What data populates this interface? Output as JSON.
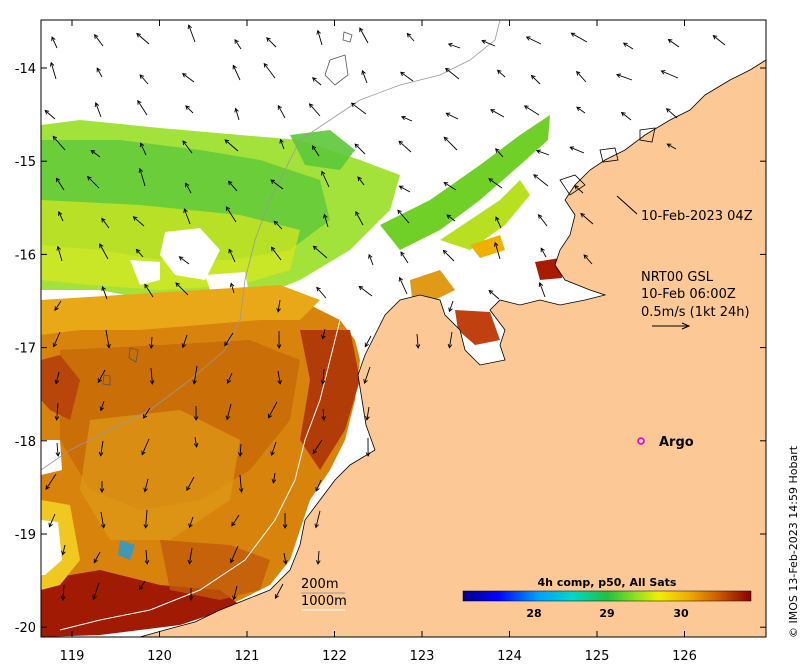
{
  "map": {
    "axes": {
      "lon_ticks": [
        "119",
        "120",
        "121",
        "122",
        "123",
        "124",
        "125",
        "126"
      ],
      "lat_ticks": [
        "-14",
        "-15",
        "-16",
        "-17",
        "-18",
        "-19",
        "-20"
      ]
    },
    "timestamp_label": "10-Feb-2023 04Z",
    "current_legend": {
      "line1": "NRT00 GSL",
      "line2": "10-Feb 06:00Z",
      "line3": "0.5m/s (1kt 24h)"
    },
    "argo_label": "Argo",
    "isobaths": {
      "shallow": "200m",
      "deep": "1000m"
    },
    "colorbar": {
      "title": "4h comp, p50, All Sats",
      "ticks": [
        "28",
        "29",
        "30"
      ]
    },
    "credit": "© IMOS 13-Feb-2023 14:59 Hobart",
    "colors": {
      "land": "#fcc996",
      "sst_cold": "#00008b",
      "sst_warm": "#8b0000"
    }
  }
}
